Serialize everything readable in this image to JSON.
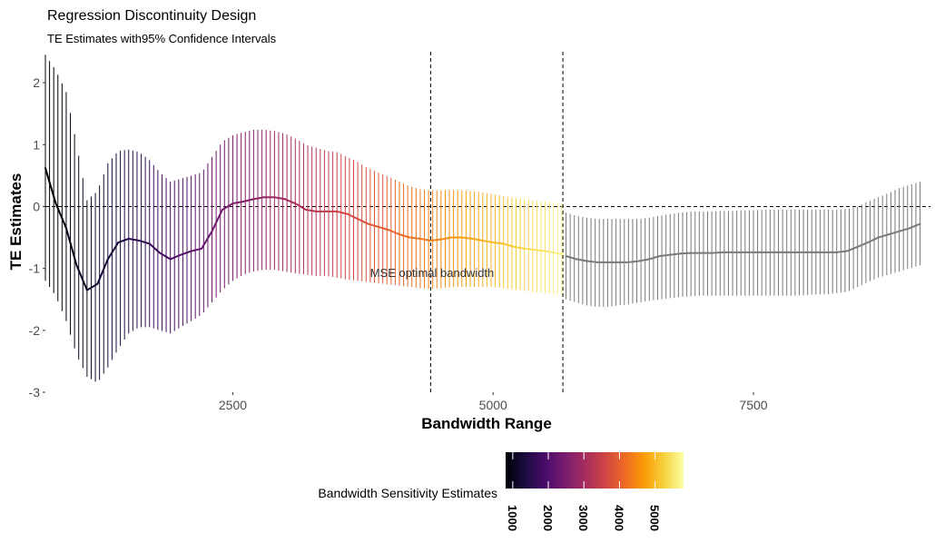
{
  "chart_data": {
    "type": "line",
    "title": "Regression Discontinuity Design",
    "subtitle": "TE Estimates with95% Confidence Intervals",
    "xlabel": "Bandwidth Range",
    "ylabel": "TE Estimates",
    "xlim": [
      700,
      9200
    ],
    "ylim": [
      -3,
      2.5
    ],
    "x_ticks": [
      2500,
      5000,
      7500
    ],
    "y_ticks": [
      -3,
      -2,
      -1,
      0,
      1,
      2
    ],
    "grid": false,
    "annotation": "MSE optimal bandwidth",
    "vlines": [
      4400,
      5670
    ],
    "hline": 0,
    "gray_color": "#7a7a7a",
    "colorbar": {
      "title": "Bandwidth Sensitivity Estimates",
      "ticks": [
        1000,
        2000,
        3000,
        4000,
        5000
      ],
      "range": [
        800,
        5800
      ],
      "palette": [
        "#000004",
        "#1b0c41",
        "#4a0c6b",
        "#781c6d",
        "#a52c60",
        "#cf4446",
        "#ed6925",
        "#fb9b06",
        "#f7d13d",
        "#fcffa4"
      ],
      "legend_position": "bottom"
    },
    "series": [
      {
        "x": [
          700,
          800,
          900,
          1000,
          1100,
          1200,
          1300,
          1400,
          1500,
          1600,
          1700,
          1800,
          1900,
          2000,
          2100,
          2200,
          2300,
          2400,
          2500,
          2600,
          2700,
          2800,
          2900,
          3000,
          3100,
          3200,
          3300,
          3400,
          3500,
          3600,
          3700,
          3800,
          3900,
          4000,
          4100,
          4200,
          4300,
          4400,
          4500,
          4600,
          4700,
          4800,
          4900,
          5000,
          5100,
          5200,
          5300,
          5400,
          5500,
          5600,
          5670
        ],
        "y": [
          0.62,
          0.05,
          -0.35,
          -0.95,
          -1.35,
          -1.25,
          -0.85,
          -0.58,
          -0.52,
          -0.55,
          -0.6,
          -0.75,
          -0.85,
          -0.78,
          -0.72,
          -0.68,
          -0.4,
          -0.05,
          0.05,
          0.08,
          0.12,
          0.15,
          0.15,
          0.12,
          0.05,
          -0.05,
          -0.08,
          -0.08,
          -0.08,
          -0.12,
          -0.2,
          -0.28,
          -0.33,
          -0.38,
          -0.45,
          -0.5,
          -0.52,
          -0.55,
          -0.53,
          -0.5,
          -0.5,
          -0.52,
          -0.55,
          -0.58,
          -0.6,
          -0.65,
          -0.68,
          -0.7,
          -0.72,
          -0.75,
          -0.77
        ],
        "ci_low": [
          -1.2,
          -1.45,
          -1.85,
          -2.4,
          -2.75,
          -2.85,
          -2.6,
          -2.3,
          -2.05,
          -1.95,
          -1.95,
          -2.0,
          -2.05,
          -1.95,
          -1.85,
          -1.75,
          -1.55,
          -1.35,
          -1.2,
          -1.1,
          -1.05,
          -1.02,
          -1.02,
          -1.05,
          -1.08,
          -1.1,
          -1.12,
          -1.12,
          -1.15,
          -1.18,
          -1.2,
          -1.22,
          -1.24,
          -1.26,
          -1.28,
          -1.3,
          -1.32,
          -1.33,
          -1.32,
          -1.3,
          -1.3,
          -1.3,
          -1.3,
          -1.3,
          -1.32,
          -1.34,
          -1.36,
          -1.38,
          -1.4,
          -1.42,
          -1.44
        ],
        "ci_high": [
          2.45,
          2.2,
          1.85,
          1.0,
          0.1,
          0.25,
          0.7,
          0.9,
          0.92,
          0.88,
          0.75,
          0.55,
          0.4,
          0.45,
          0.5,
          0.55,
          0.8,
          1.05,
          1.15,
          1.2,
          1.24,
          1.24,
          1.22,
          1.18,
          1.1,
          1.0,
          0.95,
          0.9,
          0.88,
          0.8,
          0.72,
          0.62,
          0.55,
          0.48,
          0.4,
          0.33,
          0.28,
          0.26,
          0.26,
          0.27,
          0.26,
          0.25,
          0.23,
          0.2,
          0.17,
          0.14,
          0.12,
          0.1,
          0.08,
          0.06,
          0.05
        ]
      },
      {
        "x": [
          5700,
          5800,
          5900,
          6000,
          6100,
          6200,
          6300,
          6400,
          6500,
          6600,
          6700,
          6800,
          6900,
          7000,
          7100,
          7200,
          7300,
          7400,
          7500,
          7600,
          7700,
          7800,
          7900,
          8000,
          8100,
          8200,
          8300,
          8400,
          8500,
          8600,
          8700,
          8800,
          8900,
          9000,
          9100
        ],
        "y": [
          -0.8,
          -0.85,
          -0.88,
          -0.9,
          -0.9,
          -0.9,
          -0.9,
          -0.88,
          -0.85,
          -0.8,
          -0.78,
          -0.76,
          -0.75,
          -0.75,
          -0.75,
          -0.74,
          -0.74,
          -0.74,
          -0.74,
          -0.74,
          -0.74,
          -0.74,
          -0.74,
          -0.74,
          -0.74,
          -0.74,
          -0.74,
          -0.72,
          -0.65,
          -0.58,
          -0.5,
          -0.45,
          -0.4,
          -0.35,
          -0.28
        ],
        "ci_low": [
          -1.5,
          -1.55,
          -1.6,
          -1.62,
          -1.62,
          -1.6,
          -1.58,
          -1.55,
          -1.52,
          -1.5,
          -1.48,
          -1.46,
          -1.45,
          -1.44,
          -1.44,
          -1.44,
          -1.44,
          -1.44,
          -1.44,
          -1.44,
          -1.44,
          -1.44,
          -1.44,
          -1.43,
          -1.42,
          -1.42,
          -1.4,
          -1.38,
          -1.3,
          -1.22,
          -1.15,
          -1.1,
          -1.05,
          -1.0,
          -0.95
        ],
        "ci_high": [
          -0.1,
          -0.15,
          -0.18,
          -0.2,
          -0.2,
          -0.2,
          -0.2,
          -0.2,
          -0.18,
          -0.15,
          -0.12,
          -0.1,
          -0.08,
          -0.08,
          -0.08,
          -0.07,
          -0.07,
          -0.06,
          -0.06,
          -0.05,
          -0.05,
          -0.05,
          -0.05,
          -0.05,
          -0.05,
          -0.05,
          -0.05,
          -0.04,
          0.0,
          0.08,
          0.15,
          0.22,
          0.3,
          0.35,
          0.4
        ]
      }
    ]
  }
}
